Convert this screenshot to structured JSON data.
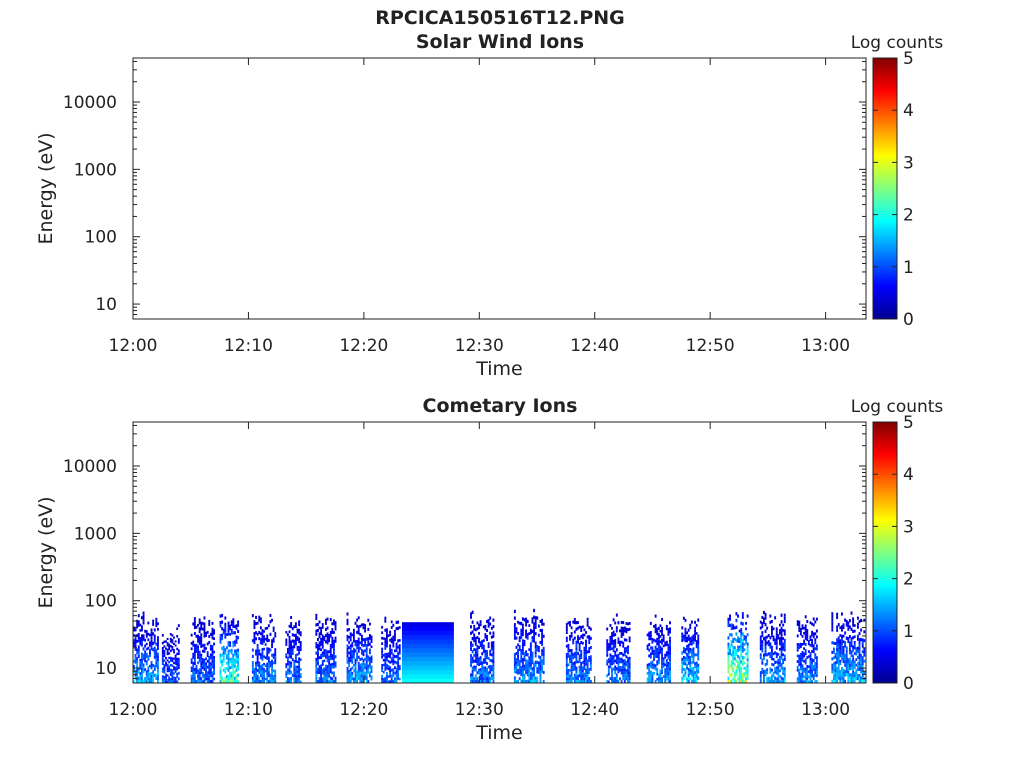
{
  "figure_title": "RPCICA150516T12.PNG",
  "colorbar": {
    "label": "Log counts",
    "ticks": [
      "0",
      "1",
      "2",
      "3",
      "4",
      "5"
    ],
    "range": [
      0,
      5
    ],
    "colormap": "jet"
  },
  "chart_data": [
    {
      "type": "heatmap",
      "title": "Solar Wind Ions",
      "xlabel": "Time",
      "ylabel": "Energy (eV)",
      "x_ticks": [
        "12:00",
        "12:10",
        "12:20",
        "12:30",
        "12:40",
        "12:50",
        "13:00"
      ],
      "x_range_minutes": [
        0,
        63.5
      ],
      "y_scale": "log",
      "y_ticks": [
        "10",
        "100",
        "1000",
        "10000"
      ],
      "y_range": [
        6,
        45000
      ],
      "grid": false,
      "data": "empty"
    },
    {
      "type": "heatmap",
      "title": "Cometary Ions",
      "xlabel": "Time",
      "ylabel": "Energy (eV)",
      "x_ticks": [
        "12:00",
        "12:10",
        "12:20",
        "12:30",
        "12:40",
        "12:50",
        "13:00"
      ],
      "x_range_minutes": [
        0,
        63.5
      ],
      "y_scale": "log",
      "y_ticks": [
        "10",
        "100",
        "1000",
        "10000"
      ],
      "y_range": [
        6,
        45000
      ],
      "grid": false,
      "max_energy_eV": 80,
      "bursts": [
        {
          "t": 0.0,
          "w": 2.2,
          "top": 70,
          "peak": 1.8
        },
        {
          "t": 2.5,
          "w": 1.5,
          "top": 50,
          "peak": 1.3
        },
        {
          "t": 5.0,
          "w": 2.0,
          "top": 60,
          "peak": 1.4
        },
        {
          "t": 7.5,
          "w": 1.6,
          "top": 75,
          "peak": 2.6
        },
        {
          "t": 10.3,
          "w": 2.0,
          "top": 70,
          "peak": 1.6
        },
        {
          "t": 13.2,
          "w": 1.3,
          "top": 65,
          "peak": 1.5
        },
        {
          "t": 15.8,
          "w": 1.8,
          "top": 75,
          "peak": 1.5
        },
        {
          "t": 18.5,
          "w": 2.2,
          "top": 70,
          "peak": 1.7
        },
        {
          "t": 21.5,
          "w": 1.6,
          "top": 65,
          "peak": 1.4
        },
        {
          "t": 23.3,
          "w": 4.5,
          "top": 48,
          "peak": 1.9,
          "block": true
        },
        {
          "t": 29.2,
          "w": 2.0,
          "top": 75,
          "peak": 1.5
        },
        {
          "t": 33.0,
          "w": 2.5,
          "top": 80,
          "peak": 1.7
        },
        {
          "t": 37.5,
          "w": 2.2,
          "top": 75,
          "peak": 1.6
        },
        {
          "t": 41.0,
          "w": 2.0,
          "top": 70,
          "peak": 1.5
        },
        {
          "t": 44.5,
          "w": 2.0,
          "top": 65,
          "peak": 1.7
        },
        {
          "t": 47.5,
          "w": 1.5,
          "top": 75,
          "peak": 2.0
        },
        {
          "t": 51.5,
          "w": 1.8,
          "top": 80,
          "peak": 3.2
        },
        {
          "t": 54.3,
          "w": 2.2,
          "top": 75,
          "peak": 1.7
        },
        {
          "t": 57.5,
          "w": 1.8,
          "top": 70,
          "peak": 1.6
        },
        {
          "t": 60.5,
          "w": 2.8,
          "top": 75,
          "peak": 1.9
        }
      ]
    }
  ]
}
